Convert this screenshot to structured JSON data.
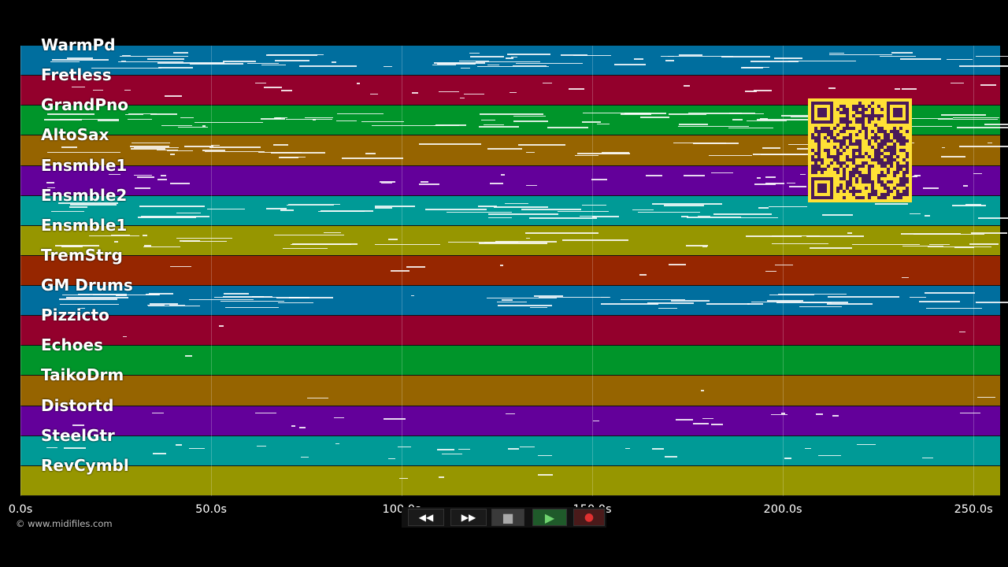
{
  "tracks": [
    {
      "name": "WarmPd",
      "color": "#006e9e"
    },
    {
      "name": "Fretless",
      "color": "#93002c"
    },
    {
      "name": "GrandPno",
      "color": "#00952a"
    },
    {
      "name": "AltoSax",
      "color": "#966400"
    },
    {
      "name": "Ensmble1",
      "color": "#63009a"
    },
    {
      "name": "Ensmble2",
      "color": "#009a96"
    },
    {
      "name": "Ensmble1",
      "color": "#969600"
    },
    {
      "name": "TremStrg",
      "color": "#962600"
    },
    {
      "name": "GM Drums",
      "color": "#006e9e"
    },
    {
      "name": "Pizzicto",
      "color": "#93002c"
    },
    {
      "name": "Echoes",
      "color": "#00952a"
    },
    {
      "name": "TaikoDrm",
      "color": "#966400"
    },
    {
      "name": "Distortd",
      "color": "#63009a"
    },
    {
      "name": "SteelGtr",
      "color": "#009a96"
    },
    {
      "name": "RevCymbl",
      "color": "#969600"
    }
  ],
  "axis": {
    "ticks": [
      "0.0s",
      "50.0s",
      "100.0s",
      "150.0s",
      "200.0s",
      "250.0s"
    ],
    "tick_values": [
      0,
      50,
      100,
      150,
      200,
      250
    ],
    "max_seconds": 257
  },
  "credit": "© www.midifiles.com",
  "transport": {
    "buttons": [
      {
        "name": "rewind",
        "glyph": "◀◀"
      },
      {
        "name": "fast-forward",
        "glyph": "▶▶"
      },
      {
        "name": "stop",
        "glyph": "■"
      },
      {
        "name": "play",
        "glyph": "▶"
      },
      {
        "name": "record",
        "glyph": "●"
      }
    ]
  },
  "colors": {
    "qr_bg": "#ffe135",
    "qr_fg": "#4a1a5a"
  }
}
